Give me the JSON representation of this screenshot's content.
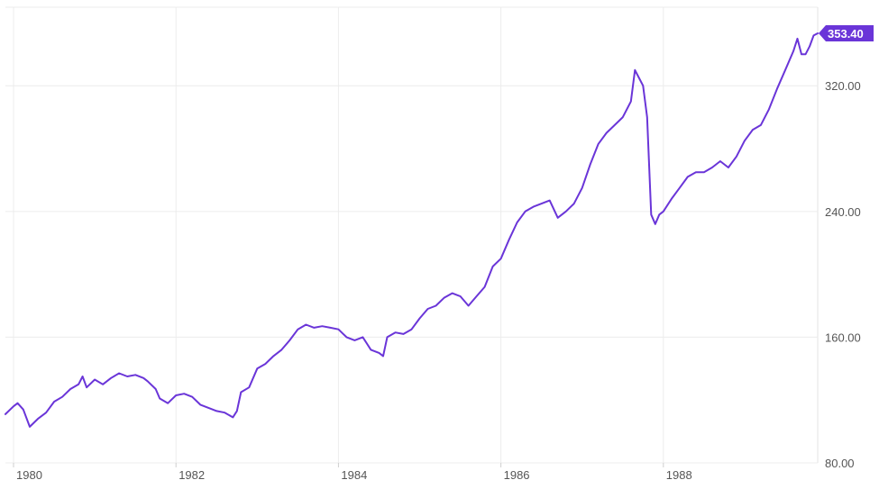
{
  "chart_data": {
    "type": "line",
    "title": "",
    "xlabel": "",
    "ylabel": "",
    "xlim": [
      1979.9,
      1989.9
    ],
    "ylim": [
      80,
      370
    ],
    "x_ticks": [
      {
        "value": 1980,
        "label": "1980"
      },
      {
        "value": 1982,
        "label": "1982"
      },
      {
        "value": 1984,
        "label": "1984"
      },
      {
        "value": 1986,
        "label": "1986"
      },
      {
        "value": 1988,
        "label": "1988"
      }
    ],
    "y_ticks": [
      {
        "value": 80,
        "label": "80.00"
      },
      {
        "value": 160,
        "label": "160.00"
      },
      {
        "value": 240,
        "label": "240.00"
      },
      {
        "value": 320,
        "label": "320.00"
      }
    ],
    "grid": true,
    "last_value_label": "353.40",
    "last_value": 353.4,
    "series": [
      {
        "color": "#6a35d8",
        "points": [
          [
            1979.9,
            111
          ],
          [
            1980.0,
            116
          ],
          [
            1980.05,
            118
          ],
          [
            1980.12,
            114
          ],
          [
            1980.2,
            103
          ],
          [
            1980.3,
            108
          ],
          [
            1980.4,
            112
          ],
          [
            1980.5,
            119
          ],
          [
            1980.6,
            122
          ],
          [
            1980.7,
            127
          ],
          [
            1980.8,
            130
          ],
          [
            1980.85,
            135
          ],
          [
            1980.9,
            128
          ],
          [
            1981.0,
            133
          ],
          [
            1981.1,
            130
          ],
          [
            1981.2,
            134
          ],
          [
            1981.3,
            137
          ],
          [
            1981.4,
            135
          ],
          [
            1981.5,
            136
          ],
          [
            1981.6,
            134
          ],
          [
            1981.65,
            132
          ],
          [
            1981.75,
            127
          ],
          [
            1981.8,
            121
          ],
          [
            1981.9,
            118
          ],
          [
            1982.0,
            123
          ],
          [
            1982.1,
            124
          ],
          [
            1982.2,
            122
          ],
          [
            1982.3,
            117
          ],
          [
            1982.4,
            115
          ],
          [
            1982.5,
            113
          ],
          [
            1982.6,
            112
          ],
          [
            1982.7,
            109
          ],
          [
            1982.75,
            113
          ],
          [
            1982.8,
            125
          ],
          [
            1982.9,
            128
          ],
          [
            1983.0,
            140
          ],
          [
            1983.1,
            143
          ],
          [
            1983.2,
            148
          ],
          [
            1983.3,
            152
          ],
          [
            1983.4,
            158
          ],
          [
            1983.5,
            165
          ],
          [
            1983.6,
            168
          ],
          [
            1983.7,
            166
          ],
          [
            1983.8,
            167
          ],
          [
            1983.9,
            166
          ],
          [
            1984.0,
            165
          ],
          [
            1984.1,
            160
          ],
          [
            1984.2,
            158
          ],
          [
            1984.3,
            160
          ],
          [
            1984.4,
            152
          ],
          [
            1984.5,
            150
          ],
          [
            1984.55,
            148
          ],
          [
            1984.6,
            160
          ],
          [
            1984.7,
            163
          ],
          [
            1984.8,
            162
          ],
          [
            1984.9,
            165
          ],
          [
            1985.0,
            172
          ],
          [
            1985.1,
            178
          ],
          [
            1985.2,
            180
          ],
          [
            1985.3,
            185
          ],
          [
            1985.4,
            188
          ],
          [
            1985.5,
            186
          ],
          [
            1985.6,
            180
          ],
          [
            1985.7,
            186
          ],
          [
            1985.8,
            192
          ],
          [
            1985.9,
            205
          ],
          [
            1986.0,
            210
          ],
          [
            1986.1,
            222
          ],
          [
            1986.2,
            233
          ],
          [
            1986.3,
            240
          ],
          [
            1986.4,
            243
          ],
          [
            1986.5,
            245
          ],
          [
            1986.6,
            247
          ],
          [
            1986.7,
            236
          ],
          [
            1986.8,
            240
          ],
          [
            1986.9,
            245
          ],
          [
            1987.0,
            255
          ],
          [
            1987.1,
            270
          ],
          [
            1987.2,
            283
          ],
          [
            1987.3,
            290
          ],
          [
            1987.4,
            295
          ],
          [
            1987.5,
            300
          ],
          [
            1987.6,
            310
          ],
          [
            1987.65,
            330
          ],
          [
            1987.7,
            325
          ],
          [
            1987.75,
            320
          ],
          [
            1987.8,
            300
          ],
          [
            1987.85,
            238
          ],
          [
            1987.9,
            232
          ],
          [
            1987.95,
            238
          ],
          [
            1988.0,
            240
          ],
          [
            1988.1,
            248
          ],
          [
            1988.2,
            255
          ],
          [
            1988.3,
            262
          ],
          [
            1988.4,
            265
          ],
          [
            1988.5,
            265
          ],
          [
            1988.6,
            268
          ],
          [
            1988.7,
            272
          ],
          [
            1988.8,
            268
          ],
          [
            1988.9,
            275
          ],
          [
            1989.0,
            285
          ],
          [
            1989.1,
            292
          ],
          [
            1989.2,
            295
          ],
          [
            1989.3,
            305
          ],
          [
            1989.4,
            318
          ],
          [
            1989.5,
            330
          ],
          [
            1989.6,
            342
          ],
          [
            1989.65,
            350
          ],
          [
            1989.7,
            340
          ],
          [
            1989.75,
            340
          ],
          [
            1989.8,
            345
          ],
          [
            1989.85,
            352
          ],
          [
            1989.9,
            353.4
          ]
        ]
      }
    ]
  }
}
